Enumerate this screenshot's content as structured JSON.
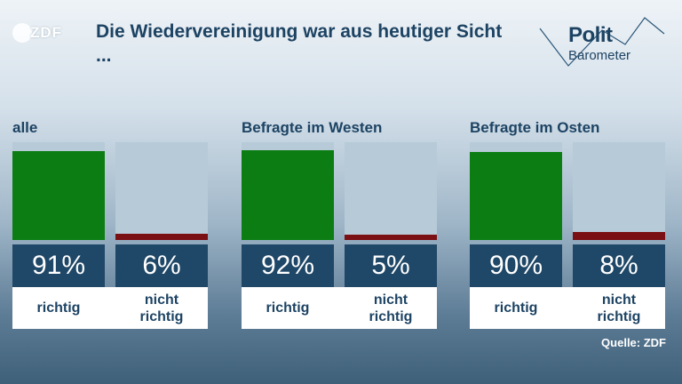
{
  "brand": {
    "logo_text": "ZDF"
  },
  "header": {
    "title": "Die Wiedervereinigung war aus heutiger Sicht ...",
    "badge_line1": "Polit",
    "badge_line2": "Barometer"
  },
  "source": "Quelle: ZDF",
  "colors": {
    "richtig": "#0b7d12",
    "nicht_richtig": "#7a0f14",
    "bar_background": "#b7cad8",
    "value_box": "#1f4767",
    "text": "#1d4363"
  },
  "chart_data": {
    "type": "bar",
    "title": "Die Wiedervereinigung war aus heutiger Sicht ...",
    "categories": [
      "richtig",
      "nicht richtig"
    ],
    "groups": [
      {
        "name": "alle",
        "values": [
          91,
          6
        ],
        "labels": [
          "91%",
          "6%"
        ]
      },
      {
        "name": "Befragte im Westen",
        "values": [
          92,
          5
        ],
        "labels": [
          "92%",
          "5%"
        ]
      },
      {
        "name": "Befragte im Osten",
        "values": [
          90,
          8
        ],
        "labels": [
          "90%",
          "8%"
        ]
      }
    ],
    "category_labels": [
      "richtig",
      "nicht\nrichtig"
    ],
    "ylim": [
      0,
      100
    ],
    "unit": "%"
  }
}
